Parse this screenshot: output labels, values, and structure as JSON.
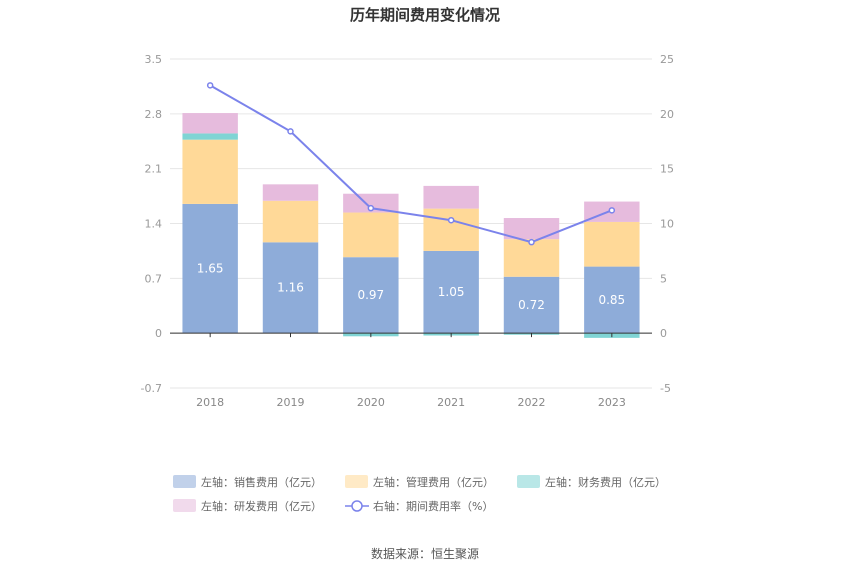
{
  "chart_data": {
    "type": "bar",
    "title": "历年期间费用变化情况",
    "categories": [
      "2018",
      "2019",
      "2020",
      "2021",
      "2022",
      "2023"
    ],
    "left_axis": {
      "unit": "亿元",
      "ylim": [
        -0.7,
        3.5
      ],
      "ticks": [
        "3.5",
        "2.8",
        "2.1",
        "1.4",
        "0.7",
        "0",
        "-0.7"
      ]
    },
    "right_axis": {
      "unit": "%",
      "ylim": [
        -5,
        25
      ],
      "ticks": [
        "25",
        "20",
        "15",
        "10",
        "5",
        "0",
        "-5"
      ]
    },
    "series": [
      {
        "name": "左轴：销售费用（亿元）",
        "type": "bar",
        "axis": "left",
        "color": "#8eacd9",
        "values": [
          1.65,
          1.16,
          0.97,
          1.05,
          0.72,
          0.85
        ],
        "labels": [
          "1.65",
          "1.16",
          "0.97",
          "1.05",
          "0.72",
          "0.85"
        ]
      },
      {
        "name": "左轴：管理费用（亿元）",
        "type": "bar",
        "axis": "left",
        "color": "#ffd998",
        "values": [
          0.82,
          0.53,
          0.57,
          0.54,
          0.48,
          0.57
        ]
      },
      {
        "name": "左轴：财务费用（亿元）",
        "type": "bar",
        "axis": "left",
        "color": "#7fd4d4",
        "values": [
          0.08,
          0.0,
          -0.04,
          -0.03,
          -0.02,
          -0.06
        ]
      },
      {
        "name": "左轴：研发费用（亿元）",
        "type": "bar",
        "axis": "left",
        "color": "#e6bbdd",
        "values": [
          0.26,
          0.21,
          0.24,
          0.29,
          0.27,
          0.26
        ]
      },
      {
        "name": "右轴：期间费用率（%）",
        "type": "line",
        "axis": "right",
        "color": "#7b83eb",
        "values": [
          22.6,
          18.4,
          11.4,
          10.3,
          8.3,
          11.2
        ]
      }
    ],
    "legend_position": "bottom",
    "grid": true
  },
  "source": "数据来源：恒生聚源"
}
